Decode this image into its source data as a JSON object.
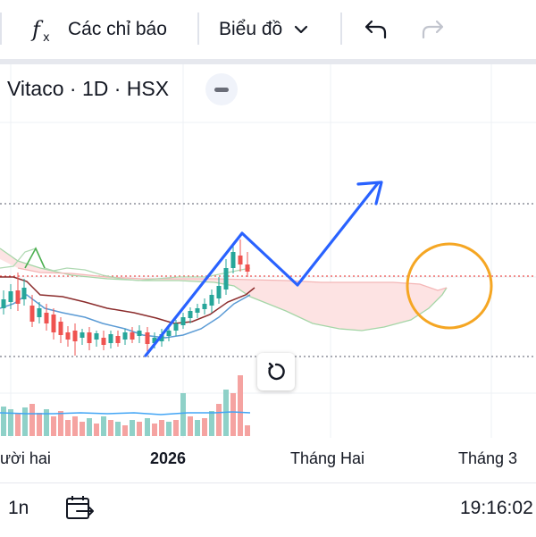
{
  "toolbar": {
    "indicators_label": "Các chỉ báo",
    "chart_type_label": "Biểu đồ"
  },
  "legend": {
    "title": "Vitaco · 1D · HSX"
  },
  "x_axis": {
    "ticks": [
      "ười hai",
      "2026",
      "Tháng Hai",
      "Tháng 3"
    ]
  },
  "bottom_bar": {
    "interval_label": "1n",
    "clock": "19:16:02"
  },
  "colors": {
    "up": "#26a69a",
    "down": "#ef5350",
    "trend_arrow": "#2962ff",
    "circle": "#f5a623",
    "cloud": "#fde2e2"
  }
}
